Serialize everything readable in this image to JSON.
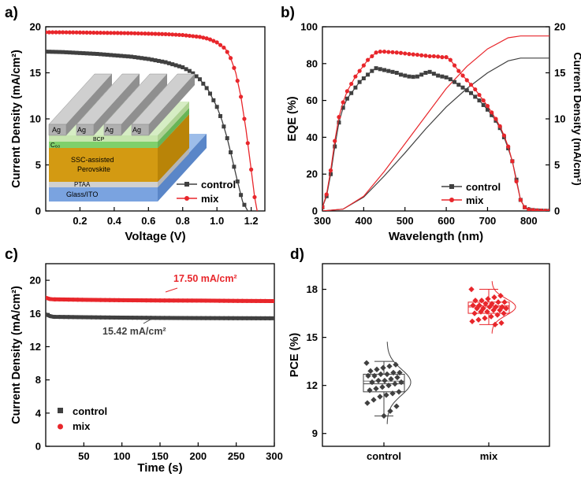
{
  "figure": {
    "colors": {
      "control": "#404040",
      "mix": "#e8262b",
      "axis": "#000000",
      "grid": "none",
      "device": {
        "ag": "#a8a8a8",
        "bcp": "#c8e6b0",
        "c60": "#7fd06b",
        "perov": "#d39a12",
        "ptaa": "#d0d0d0",
        "ito": "#7aa3e0"
      }
    }
  },
  "chart_data": [
    {
      "panel_label": "a)",
      "type": "line",
      "xlabel": "Voltage (V)",
      "ylabel": "Current Density (mA/cm²)",
      "xlim": [
        0,
        1.28
      ],
      "ylim": [
        0,
        20
      ],
      "xticks": [
        "0.2",
        "0.4",
        "0.6",
        "0.8",
        "1.0",
        "1.2"
      ],
      "yticks": [
        "0",
        "5",
        "10",
        "15",
        "20"
      ],
      "legend": {
        "position": "bottom-right",
        "entries": [
          "control",
          "mix"
        ]
      },
      "series": [
        {
          "name": "control",
          "color": "#404040",
          "marker": "square",
          "points": [
            [
              0,
              17.3
            ],
            [
              0.1,
              17.25
            ],
            [
              0.2,
              17.15
            ],
            [
              0.3,
              17.05
            ],
            [
              0.4,
              16.9
            ],
            [
              0.5,
              16.75
            ],
            [
              0.6,
              16.5
            ],
            [
              0.7,
              16.15
            ],
            [
              0.8,
              15.6
            ],
            [
              0.85,
              15.1
            ],
            [
              0.9,
              14.3
            ],
            [
              0.95,
              13.1
            ],
            [
              1.0,
              11.3
            ],
            [
              1.03,
              9.8
            ],
            [
              1.06,
              7.9
            ],
            [
              1.09,
              5.6
            ],
            [
              1.12,
              3.2
            ],
            [
              1.15,
              1.0
            ],
            [
              1.18,
              0
            ]
          ]
        },
        {
          "name": "mix",
          "color": "#e8262b",
          "marker": "circle",
          "points": [
            [
              0,
              19.4
            ],
            [
              0.1,
              19.4
            ],
            [
              0.2,
              19.38
            ],
            [
              0.3,
              19.35
            ],
            [
              0.4,
              19.33
            ],
            [
              0.5,
              19.3
            ],
            [
              0.6,
              19.25
            ],
            [
              0.7,
              19.2
            ],
            [
              0.8,
              19.1
            ],
            [
              0.9,
              18.9
            ],
            [
              0.95,
              18.7
            ],
            [
              1.0,
              18.3
            ],
            [
              1.05,
              17.6
            ],
            [
              1.08,
              16.6
            ],
            [
              1.11,
              15.0
            ],
            [
              1.14,
              12.4
            ],
            [
              1.17,
              8.8
            ],
            [
              1.2,
              4.5
            ],
            [
              1.22,
              1.5
            ],
            [
              1.235,
              0
            ]
          ]
        }
      ],
      "inset_layers": [
        "Ag",
        "Ag",
        "Ag",
        "Ag",
        "BCP",
        "C₆₀",
        "SSC-assisted",
        "Perovskite",
        "PTAA",
        "Glass/ITO"
      ]
    },
    {
      "panel_label": "b)",
      "type": "line",
      "xlabel": "Wavelength (nm)",
      "ylabel": "EQE (%)",
      "ylabel_right": "Current Density (mA/cm²)",
      "xlim": [
        300,
        850
      ],
      "ylim": [
        0,
        100
      ],
      "ylim_right": [
        0,
        20
      ],
      "xticks": [
        "300",
        "400",
        "500",
        "600",
        "700",
        "800"
      ],
      "yticks": [
        "0",
        "20",
        "40",
        "60",
        "80",
        "100"
      ],
      "yticks_right": [
        "0",
        "5",
        "10",
        "15",
        "20"
      ],
      "legend": {
        "position": "bottom-center",
        "entries": [
          "control",
          "mix"
        ]
      },
      "series": [
        {
          "name": "control",
          "color": "#404040",
          "marker": "square",
          "points": [
            [
              300,
              2
            ],
            [
              310,
              8
            ],
            [
              320,
              20
            ],
            [
              330,
              35
            ],
            [
              340,
              48
            ],
            [
              350,
              56
            ],
            [
              360,
              61
            ],
            [
              370,
              64
            ],
            [
              380,
              67
            ],
            [
              390,
              70
            ],
            [
              400,
              72
            ],
            [
              410,
              74
            ],
            [
              420,
              76
            ],
            [
              430,
              77.5
            ],
            [
              440,
              77
            ],
            [
              450,
              76.5
            ],
            [
              460,
              76
            ],
            [
              470,
              75.5
            ],
            [
              480,
              75
            ],
            [
              490,
              74
            ],
            [
              500,
              73.5
            ],
            [
              510,
              73
            ],
            [
              520,
              72.8
            ],
            [
              530,
              73
            ],
            [
              540,
              74
            ],
            [
              550,
              75
            ],
            [
              560,
              75.5
            ],
            [
              570,
              74.5
            ],
            [
              580,
              73.5
            ],
            [
              590,
              73
            ],
            [
              600,
              72.5
            ],
            [
              610,
              71.5
            ],
            [
              620,
              70
            ],
            [
              630,
              68.5
            ],
            [
              640,
              67
            ],
            [
              650,
              65.5
            ],
            [
              660,
              64
            ],
            [
              670,
              62
            ],
            [
              680,
              60
            ],
            [
              690,
              57.5
            ],
            [
              700,
              55
            ],
            [
              710,
              52
            ],
            [
              720,
              49
            ],
            [
              730,
              45
            ],
            [
              740,
              40
            ],
            [
              750,
              34
            ],
            [
              760,
              27
            ],
            [
              770,
              17
            ],
            [
              780,
              6
            ],
            [
              790,
              2
            ],
            [
              800,
              0.8
            ],
            [
              810,
              0.5
            ],
            [
              820,
              0.3
            ],
            [
              830,
              0.2
            ],
            [
              840,
              0.1
            ],
            [
              850,
              0.1
            ]
          ]
        },
        {
          "name": "mix",
          "color": "#e8262b",
          "marker": "circle",
          "points": [
            [
              300,
              2
            ],
            [
              310,
              9
            ],
            [
              320,
              22
            ],
            [
              330,
              38
            ],
            [
              340,
              51
            ],
            [
              350,
              59
            ],
            [
              360,
              65
            ],
            [
              370,
              69
            ],
            [
              380,
              73
            ],
            [
              390,
              76
            ],
            [
              400,
              79
            ],
            [
              410,
              82
            ],
            [
              420,
              84
            ],
            [
              430,
              86
            ],
            [
              440,
              86.5
            ],
            [
              450,
              86.5
            ],
            [
              460,
              86.3
            ],
            [
              470,
              86.2
            ],
            [
              480,
              86
            ],
            [
              490,
              85.8
            ],
            [
              500,
              85.5
            ],
            [
              510,
              85.2
            ],
            [
              520,
              85
            ],
            [
              530,
              84.8
            ],
            [
              540,
              84.5
            ],
            [
              550,
              84.3
            ],
            [
              560,
              84
            ],
            [
              570,
              84
            ],
            [
              580,
              83.8
            ],
            [
              590,
              83.5
            ],
            [
              600,
              83.5
            ],
            [
              610,
              82
            ],
            [
              620,
              79
            ],
            [
              630,
              76
            ],
            [
              640,
              73.5
            ],
            [
              650,
              71
            ],
            [
              660,
              68.5
            ],
            [
              670,
              66
            ],
            [
              680,
              63
            ],
            [
              690,
              60
            ],
            [
              700,
              57
            ],
            [
              710,
              53.5
            ],
            [
              720,
              50
            ],
            [
              730,
              46
            ],
            [
              740,
              41
            ],
            [
              750,
              35
            ],
            [
              760,
              27
            ],
            [
              770,
              16
            ],
            [
              780,
              6
            ],
            [
              790,
              2
            ],
            [
              800,
              0.8
            ],
            [
              810,
              0.5
            ],
            [
              820,
              0.3
            ],
            [
              830,
              0.2
            ],
            [
              840,
              0.1
            ],
            [
              850,
              0.1
            ]
          ]
        }
      ],
      "integrated_series": [
        {
          "name": "control",
          "color": "#404040",
          "points": [
            [
              300,
              0
            ],
            [
              350,
              0.2
            ],
            [
              400,
              1.5
            ],
            [
              450,
              3.8
            ],
            [
              500,
              6.3
            ],
            [
              550,
              8.9
            ],
            [
              600,
              11.3
            ],
            [
              650,
              13.3
            ],
            [
              700,
              15.0
            ],
            [
              750,
              16.3
            ],
            [
              780,
              16.6
            ],
            [
              850,
              16.6
            ]
          ]
        },
        {
          "name": "mix",
          "color": "#e8262b",
          "points": [
            [
              300,
              0
            ],
            [
              350,
              0.2
            ],
            [
              400,
              1.6
            ],
            [
              450,
              4.3
            ],
            [
              500,
              7.3
            ],
            [
              550,
              10.3
            ],
            [
              600,
              13.3
            ],
            [
              650,
              15.7
            ],
            [
              700,
              17.6
            ],
            [
              750,
              18.8
            ],
            [
              780,
              19.0
            ],
            [
              850,
              19.0
            ]
          ]
        }
      ]
    },
    {
      "panel_label": "c)",
      "type": "line",
      "xlabel": "Time (s)",
      "ylabel": "Current Density (mA/cm²)",
      "xlim": [
        0,
        300
      ],
      "ylim": [
        0,
        22
      ],
      "xticks": [
        "50",
        "100",
        "150",
        "200",
        "250",
        "300"
      ],
      "yticks": [
        "0",
        "4",
        "8",
        "12",
        "16",
        "20"
      ],
      "legend": {
        "position": "bottom-left",
        "entries": [
          "control",
          "mix"
        ]
      },
      "annotations": [
        {
          "text": "17.50 mA/cm²",
          "color": "#e8262b"
        },
        {
          "text": "15.42 mA/cm²",
          "color": "#404040"
        }
      ],
      "series": [
        {
          "name": "control",
          "color": "#404040",
          "points": [
            [
              0,
              15.9
            ],
            [
              5,
              15.7
            ],
            [
              10,
              15.6
            ],
            [
              50,
              15.55
            ],
            [
              100,
              15.5
            ],
            [
              150,
              15.47
            ],
            [
              200,
              15.45
            ],
            [
              250,
              15.43
            ],
            [
              300,
              15.42
            ]
          ]
        },
        {
          "name": "mix",
          "color": "#e8262b",
          "points": [
            [
              0,
              17.9
            ],
            [
              5,
              17.75
            ],
            [
              10,
              17.7
            ],
            [
              50,
              17.65
            ],
            [
              100,
              17.6
            ],
            [
              150,
              17.57
            ],
            [
              200,
              17.55
            ],
            [
              250,
              17.52
            ],
            [
              300,
              17.5
            ]
          ]
        }
      ]
    },
    {
      "panel_label": "d)",
      "type": "box",
      "xlabel": "",
      "ylabel": "PCE (%)",
      "categories": [
        "control",
        "mix"
      ],
      "ylim": [
        8.2,
        19.6
      ],
      "yticks": [
        "9",
        "12",
        "15",
        "18"
      ],
      "series": [
        {
          "name": "control",
          "color": "#404040",
          "box": {
            "whisker_low": 10.1,
            "q1": 11.6,
            "median": 12.1,
            "mean": 12.2,
            "q3": 12.7,
            "whisker_high": 13.5
          },
          "points": [
            13.4,
            13.3,
            13.2,
            13.1,
            13.0,
            12.9,
            12.8,
            12.8,
            12.7,
            12.7,
            12.6,
            12.6,
            12.5,
            12.4,
            12.3,
            12.3,
            12.2,
            12.2,
            12.1,
            12.0,
            11.9,
            11.8,
            11.7,
            11.6,
            11.5,
            11.4,
            11.3,
            11.1,
            10.9,
            10.7,
            10.4,
            10.1
          ]
        },
        {
          "name": "mix",
          "color": "#e8262b",
          "box": {
            "whisker_low": 15.8,
            "q1": 16.5,
            "median": 16.9,
            "mean": 16.9,
            "q3": 17.2,
            "whisker_high": 18.0
          },
          "points": [
            18.0,
            17.6,
            17.5,
            17.4,
            17.3,
            17.3,
            17.2,
            17.2,
            17.1,
            17.1,
            17.0,
            17.0,
            16.9,
            16.9,
            16.9,
            16.8,
            16.8,
            16.8,
            16.7,
            16.7,
            16.6,
            16.6,
            16.5,
            16.5,
            16.4,
            16.3,
            16.2,
            16.1,
            16.0,
            15.9,
            15.8
          ]
        }
      ]
    }
  ]
}
